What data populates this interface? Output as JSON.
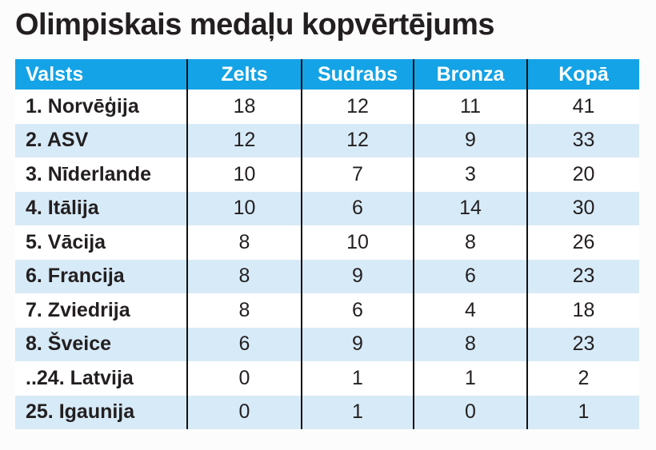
{
  "title": "Olimpiskais medaļu kopvērtējums",
  "colors": {
    "header_background": "#14a3e6",
    "row_stripe": "#d7eaf7",
    "text": "#231f20",
    "divider": "#111111"
  },
  "chart_data": {
    "type": "table",
    "title": "Olimpiskais medaļu kopvērtējums",
    "columns": [
      "Valsts",
      "Zelts",
      "Sudrabs",
      "Bronza",
      "Kopā"
    ],
    "rows": [
      {
        "country": "1. Norvēģija",
        "gold": "18",
        "silver": "12",
        "bronze": "11",
        "total": "41"
      },
      {
        "country": "2. ASV",
        "gold": "12",
        "silver": "12",
        "bronze": "9",
        "total": "33"
      },
      {
        "country": "3. Nīderlande",
        "gold": "10",
        "silver": "7",
        "bronze": "3",
        "total": "20"
      },
      {
        "country": "4. Itālija",
        "gold": "10",
        "silver": "6",
        "bronze": "14",
        "total": "30"
      },
      {
        "country": "5. Vācija",
        "gold": "8",
        "silver": "10",
        "bronze": "8",
        "total": "26"
      },
      {
        "country": "6. Francija",
        "gold": "8",
        "silver": "9",
        "bronze": "6",
        "total": "23"
      },
      {
        "country": "7. Zviedrija",
        "gold": "8",
        "silver": "6",
        "bronze": "4",
        "total": "18"
      },
      {
        "country": "8. Šveice",
        "gold": "6",
        "silver": "9",
        "bronze": "8",
        "total": "23"
      },
      {
        "country": "..24. Latvija",
        "gold": "0",
        "silver": "1",
        "bronze": "1",
        "total": "2"
      },
      {
        "country": "25. Igaunija",
        "gold": "0",
        "silver": "1",
        "bronze": "0",
        "total": "1"
      }
    ]
  }
}
